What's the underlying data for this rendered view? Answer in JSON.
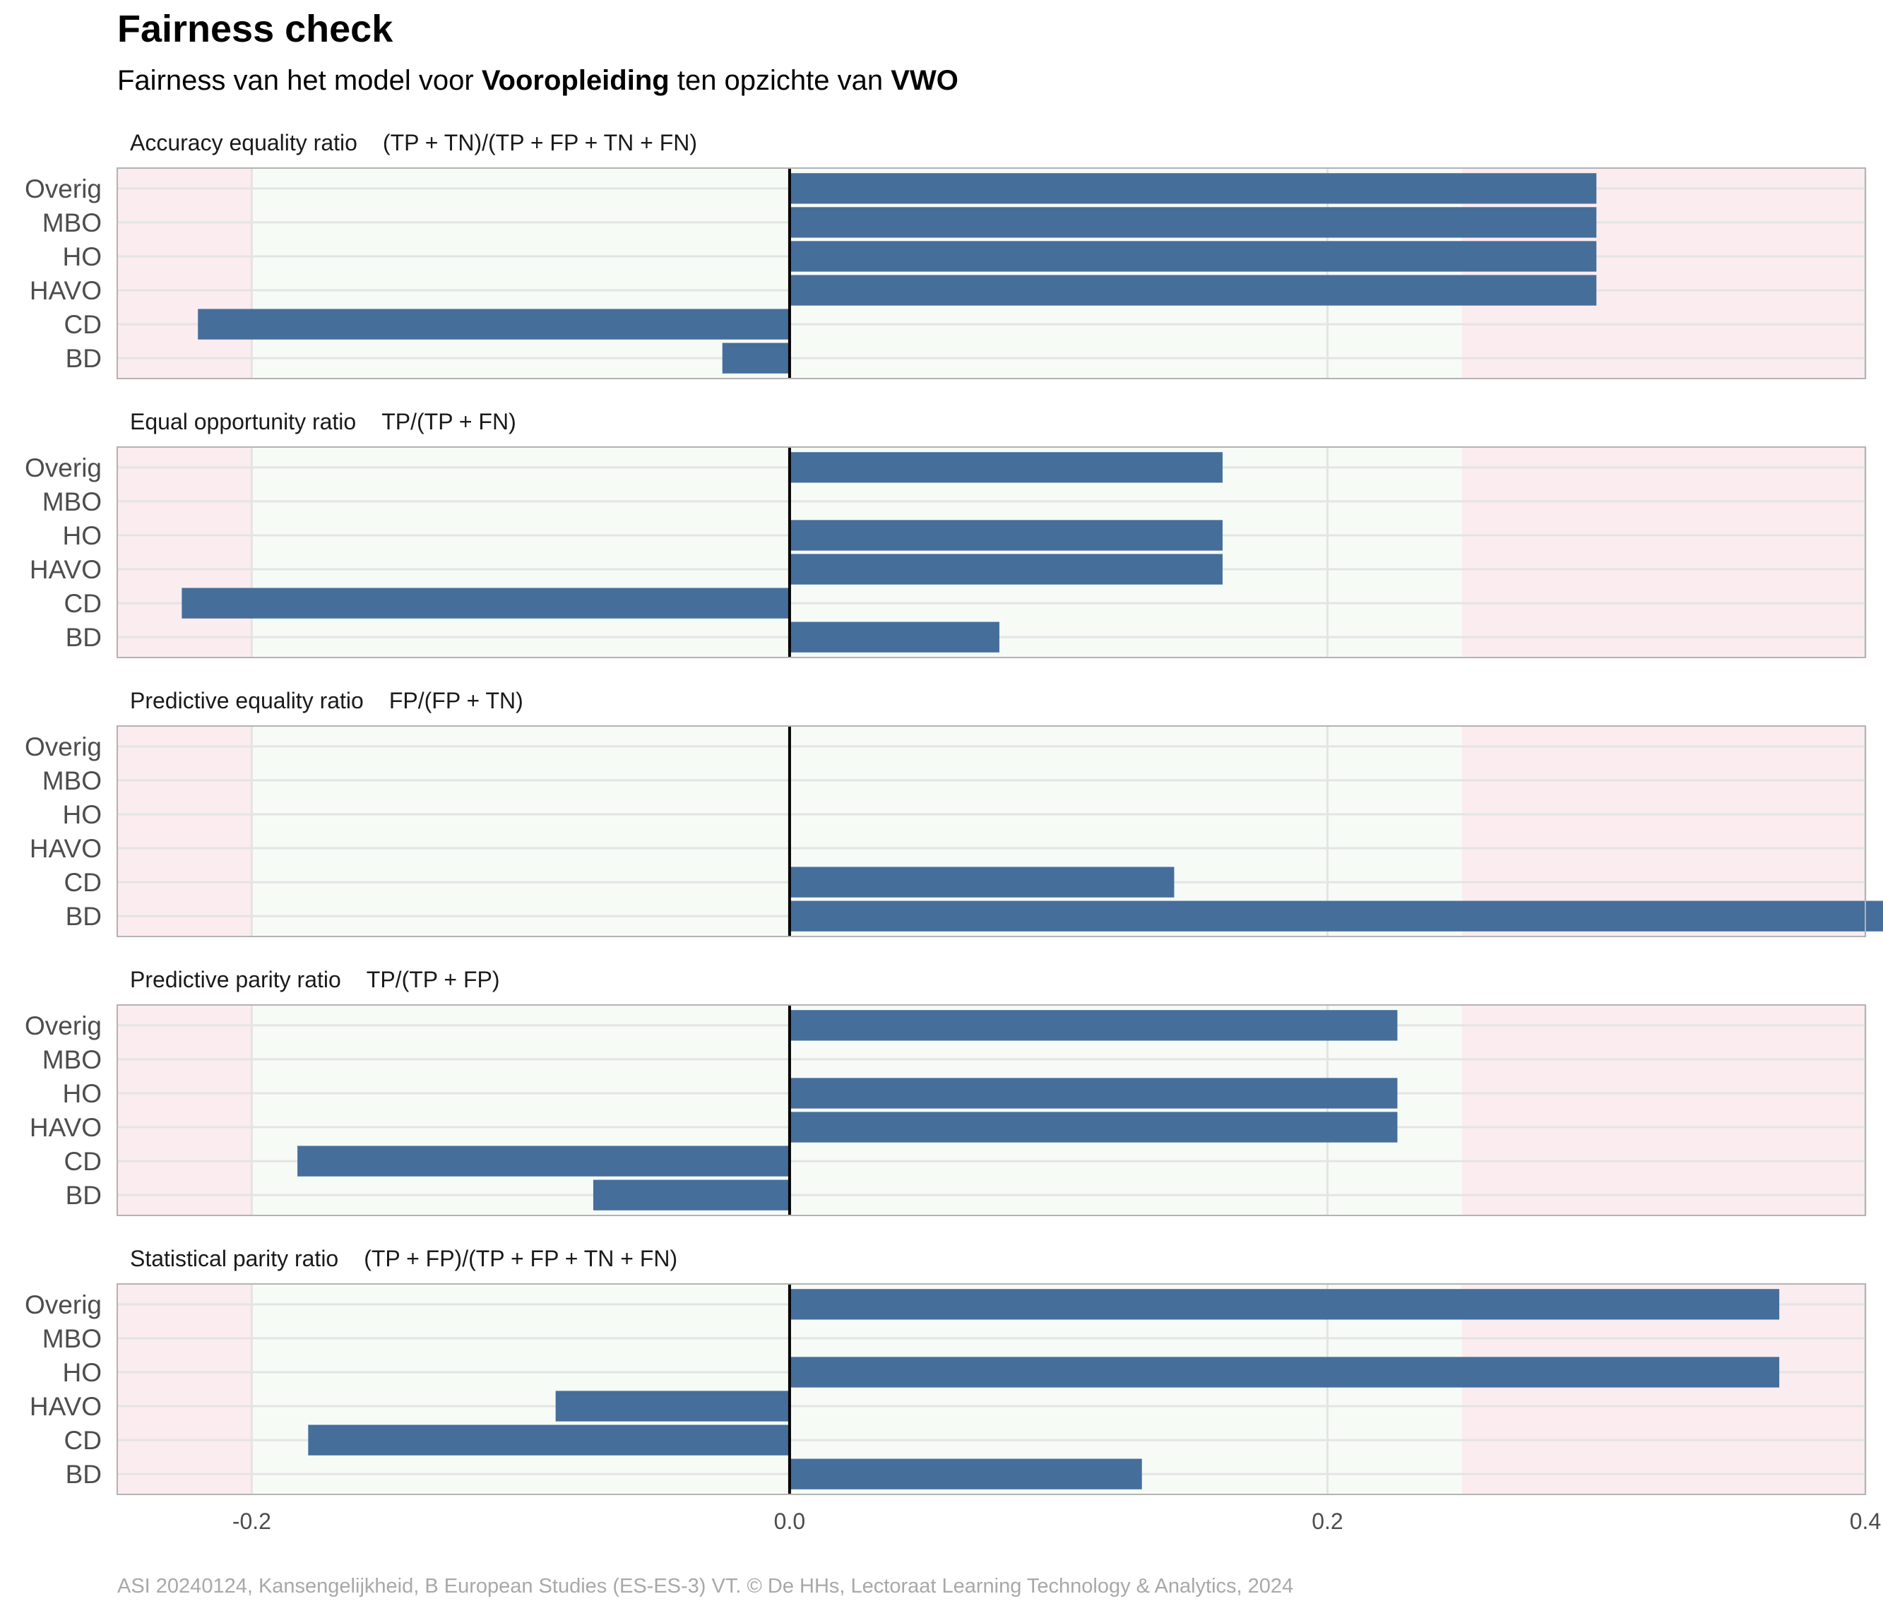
{
  "title": "Fairness check",
  "subtitle": {
    "prefix": "Fairness van het model voor ",
    "variable": "Vooropleiding",
    "middle": " ten opzichte van ",
    "reference": "VWO"
  },
  "caption": "ASI 20240124, Kansengelijkheid, B European Studies (ES-ES-3) VT. © De HHs, Lectoraat Learning Technology & Analytics, 2024",
  "colors": {
    "bar": "#466e9b",
    "fair_zone": "#f6fbf6",
    "unfair_zone": "#fbecef",
    "grid": "#e4e4e4",
    "zero_line": "#000000",
    "panel_border": "#b3b3b3"
  },
  "chart_data": {
    "type": "bar",
    "orientation": "horizontal",
    "categories": [
      "Overig",
      "MBO",
      "HO",
      "HAVO",
      "CD",
      "BD"
    ],
    "xlim": [
      -0.25,
      0.4
    ],
    "x_ticks": [
      -0.2,
      0.0,
      0.2,
      0.4
    ],
    "x_tick_labels": [
      "-0.2",
      "0.0",
      "0.2",
      "0.4"
    ],
    "fair_range": [
      -0.2,
      0.25
    ],
    "grid": true,
    "panels": [
      {
        "label": "Accuracy equality ratio",
        "formula": "(TP + TN)/(TP + FP + TN + FN)",
        "values": [
          0.3,
          0.3,
          0.3,
          0.3,
          -0.22,
          -0.025
        ]
      },
      {
        "label": "Equal opportunity ratio",
        "formula": "TP/(TP + FN)",
        "values": [
          0.161,
          null,
          0.161,
          0.161,
          -0.226,
          0.078
        ]
      },
      {
        "label": "Predictive equality ratio",
        "formula": "FP/(FP + TN)",
        "values": [
          null,
          null,
          null,
          null,
          0.143,
          0.411
        ]
      },
      {
        "label": "Predictive parity ratio",
        "formula": "TP/(TP + FP)",
        "values": [
          0.226,
          null,
          0.226,
          0.226,
          -0.183,
          -0.073
        ]
      },
      {
        "label": "Statistical parity ratio",
        "formula": "(TP + FP)/(TP + FP + TN + FN)",
        "values": [
          0.368,
          null,
          0.368,
          -0.087,
          -0.179,
          0.131
        ]
      }
    ]
  }
}
